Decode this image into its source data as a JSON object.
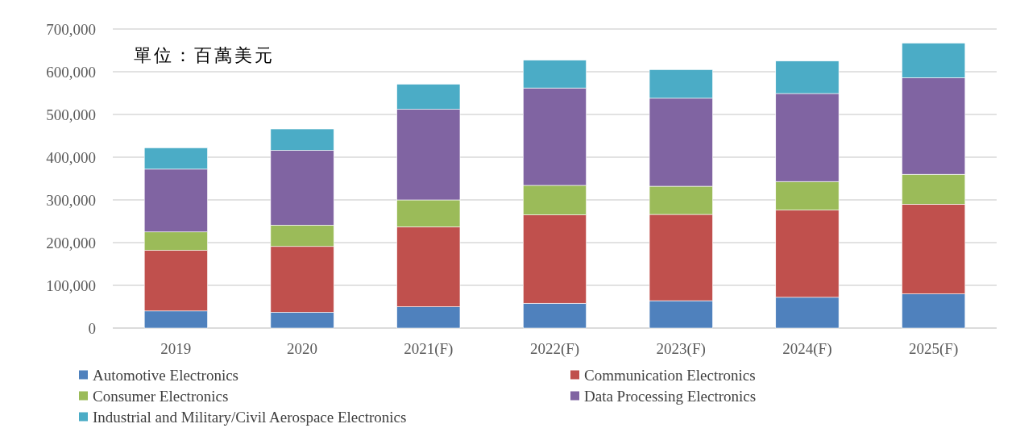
{
  "chart_data": {
    "type": "bar",
    "stacked": true,
    "categories": [
      "2019",
      "2020",
      "2021(F)",
      "2022(F)",
      "2023(F)",
      "2024(F)",
      "2025(F)"
    ],
    "series": [
      {
        "name": "Automotive Electronics",
        "color": "#4f81bd",
        "values": [
          40000,
          37000,
          50000,
          58000,
          64000,
          72000,
          80000
        ]
      },
      {
        "name": "Communication Electronics",
        "color": "#c0504d",
        "values": [
          142000,
          154000,
          187000,
          207000,
          202000,
          204000,
          210000
        ]
      },
      {
        "name": "Consumer Electronics",
        "color": "#9bbb59",
        "values": [
          43000,
          50000,
          63000,
          69000,
          66000,
          67000,
          70000
        ]
      },
      {
        "name": "Data Processing Electronics",
        "color": "#8064a2",
        "values": [
          147000,
          175000,
          212000,
          228000,
          206000,
          206000,
          226000
        ]
      },
      {
        "name": "Industrial and Military/Civil Aerospace Electronics",
        "color": "#4bacc6",
        "values": [
          50000,
          50000,
          59000,
          65000,
          67000,
          76000,
          81000
        ]
      }
    ],
    "ylim": [
      0,
      700000
    ],
    "yticks": [
      0,
      {
        "value": 100000,
        "label": "100,000"
      },
      {
        "value": 200000,
        "label": "200,000"
      },
      {
        "value": 300000,
        "label": "300,000"
      },
      {
        "value": 400000,
        "label": "400,000"
      },
      {
        "value": 500000,
        "label": "500,000"
      },
      {
        "value": 600000,
        "label": "600,000"
      },
      {
        "value": 700000,
        "label": "700,000"
      }
    ],
    "grid": "y",
    "legend": "bottom",
    "annotations": [
      "單位：百萬美元"
    ]
  }
}
